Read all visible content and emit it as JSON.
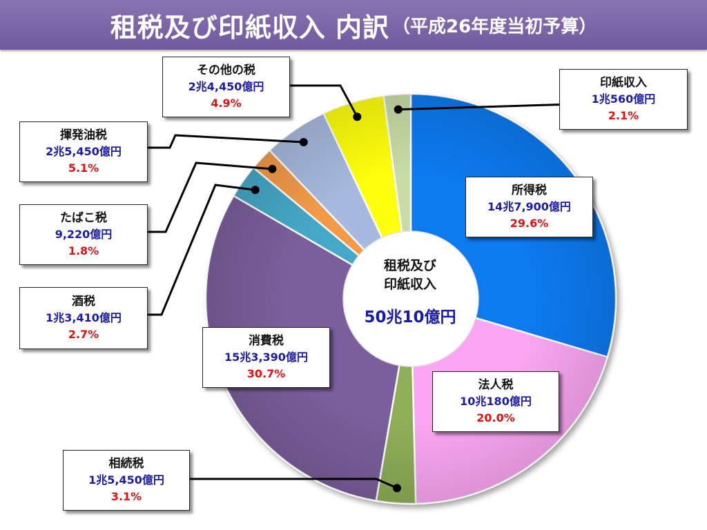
{
  "title": {
    "main": "租税及び印紙収入 内訳",
    "sub": "（平成26年度当初予算）"
  },
  "center": {
    "line1": "租税及び",
    "line2": "印紙収入",
    "total": "50兆10億円"
  },
  "chart_data": {
    "type": "pie",
    "title": "租税及び印紙収入 内訳（平成26年度当初予算）",
    "total_label": "50兆10億円",
    "unit": "億円",
    "slices": [
      {
        "name": "所得税",
        "amount_label": "14兆7,900億円",
        "percent_label": "29.6%",
        "value": 147900,
        "percent": 29.6,
        "color": "#0a7af0"
      },
      {
        "name": "法人税",
        "amount_label": "10兆180億円",
        "percent_label": "20.0%",
        "value": 100180,
        "percent": 20.0,
        "color": "#fba6f2"
      },
      {
        "name": "相続税",
        "amount_label": "1兆5,450億円",
        "percent_label": "3.1%",
        "value": 15450,
        "percent": 3.1,
        "color": "#8fae58"
      },
      {
        "name": "消費税",
        "amount_label": "15兆3,390億円",
        "percent_label": "30.7%",
        "value": 153390,
        "percent": 30.7,
        "color": "#7a5f9c"
      },
      {
        "name": "酒税",
        "amount_label": "1兆3,410億円",
        "percent_label": "2.7%",
        "value": 13410,
        "percent": 2.7,
        "color": "#45a8c6"
      },
      {
        "name": "たばこ税",
        "amount_label": "9,220億円",
        "percent_label": "1.8%",
        "value": 9220,
        "percent": 1.8,
        "color": "#f39a4a"
      },
      {
        "name": "揮発油税",
        "amount_label": "2兆5,450億円",
        "percent_label": "5.1%",
        "value": 25450,
        "percent": 5.1,
        "color": "#a6b9de"
      },
      {
        "name": "その他の税",
        "amount_label": "2兆4,450億円",
        "percent_label": "4.9%",
        "value": 24450,
        "percent": 4.9,
        "color": "#ffff10"
      },
      {
        "name": "印紙収入",
        "amount_label": "1兆560億円",
        "percent_label": "2.1%",
        "value": 10560,
        "percent": 2.1,
        "color": "#c8dca6"
      }
    ]
  }
}
